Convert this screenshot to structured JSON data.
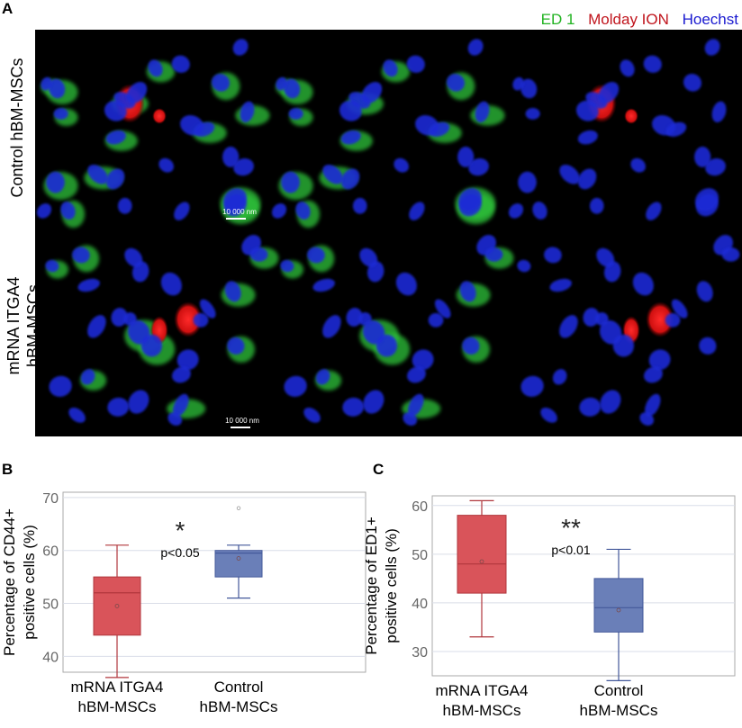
{
  "figure": {
    "panel_labels": {
      "a": "A",
      "b": "B",
      "c": "C"
    },
    "legend": {
      "ed1": {
        "label": "ED 1",
        "color": "#22b322"
      },
      "molday": {
        "label": "Molday ION",
        "color": "#c0141c"
      },
      "hoechst": {
        "label": "Hoechst",
        "color": "#1a1ad0"
      }
    },
    "row_labels": {
      "top": [
        "Control hBM-MSCs"
      ],
      "bottom": [
        "mRNA ITGA4",
        "hBM-MSCs"
      ]
    },
    "scale_bar_label": "10 000 nm"
  },
  "chart_data": [
    {
      "type": "box",
      "panel": "B",
      "ylabel_lines": [
        "Percentage of CD44+",
        "positive cells (%)"
      ],
      "ylim": [
        37,
        71
      ],
      "yticks": [
        40,
        50,
        60,
        70
      ],
      "grid": true,
      "categories": [
        [
          "mRNA ITGA4",
          "hBM-MSCs"
        ],
        [
          "Control",
          "hBM-MSCs"
        ]
      ],
      "boxes": [
        {
          "min": 36,
          "q1": 44,
          "median": 52,
          "q3": 55,
          "max": 61,
          "mean": 49.5,
          "outliers": [],
          "color": "#d9545a",
          "stroke": "#b0363c"
        },
        {
          "min": 51,
          "q1": 55,
          "median": 59.5,
          "q3": 60,
          "max": 61,
          "mean": 58.5,
          "outliers": [
            68
          ],
          "color": "#6a7fb8",
          "stroke": "#43589a"
        }
      ],
      "significance": {
        "stars": "*",
        "p": "p<0.05"
      }
    },
    {
      "type": "box",
      "panel": "C",
      "ylabel_lines": [
        "Percentage of ED1+",
        "positive cells (%)"
      ],
      "ylim": [
        25,
        62
      ],
      "yticks": [
        30,
        40,
        50,
        60
      ],
      "grid": true,
      "categories": [
        [
          "mRNA ITGA4",
          "hBM-MSCs"
        ],
        [
          "Control",
          "hBM-MSCs"
        ]
      ],
      "boxes": [
        {
          "min": 33,
          "q1": 42,
          "median": 48,
          "q3": 58,
          "max": 61,
          "mean": 48.5,
          "outliers": [],
          "color": "#d9545a",
          "stroke": "#b0363c"
        },
        {
          "min": 24,
          "q1": 34,
          "median": 39,
          "q3": 45,
          "max": 51,
          "mean": 38.5,
          "outliers": [],
          "color": "#6a7fb8",
          "stroke": "#43589a"
        }
      ],
      "significance": {
        "stars": "**",
        "p": "p<0.01"
      }
    }
  ]
}
